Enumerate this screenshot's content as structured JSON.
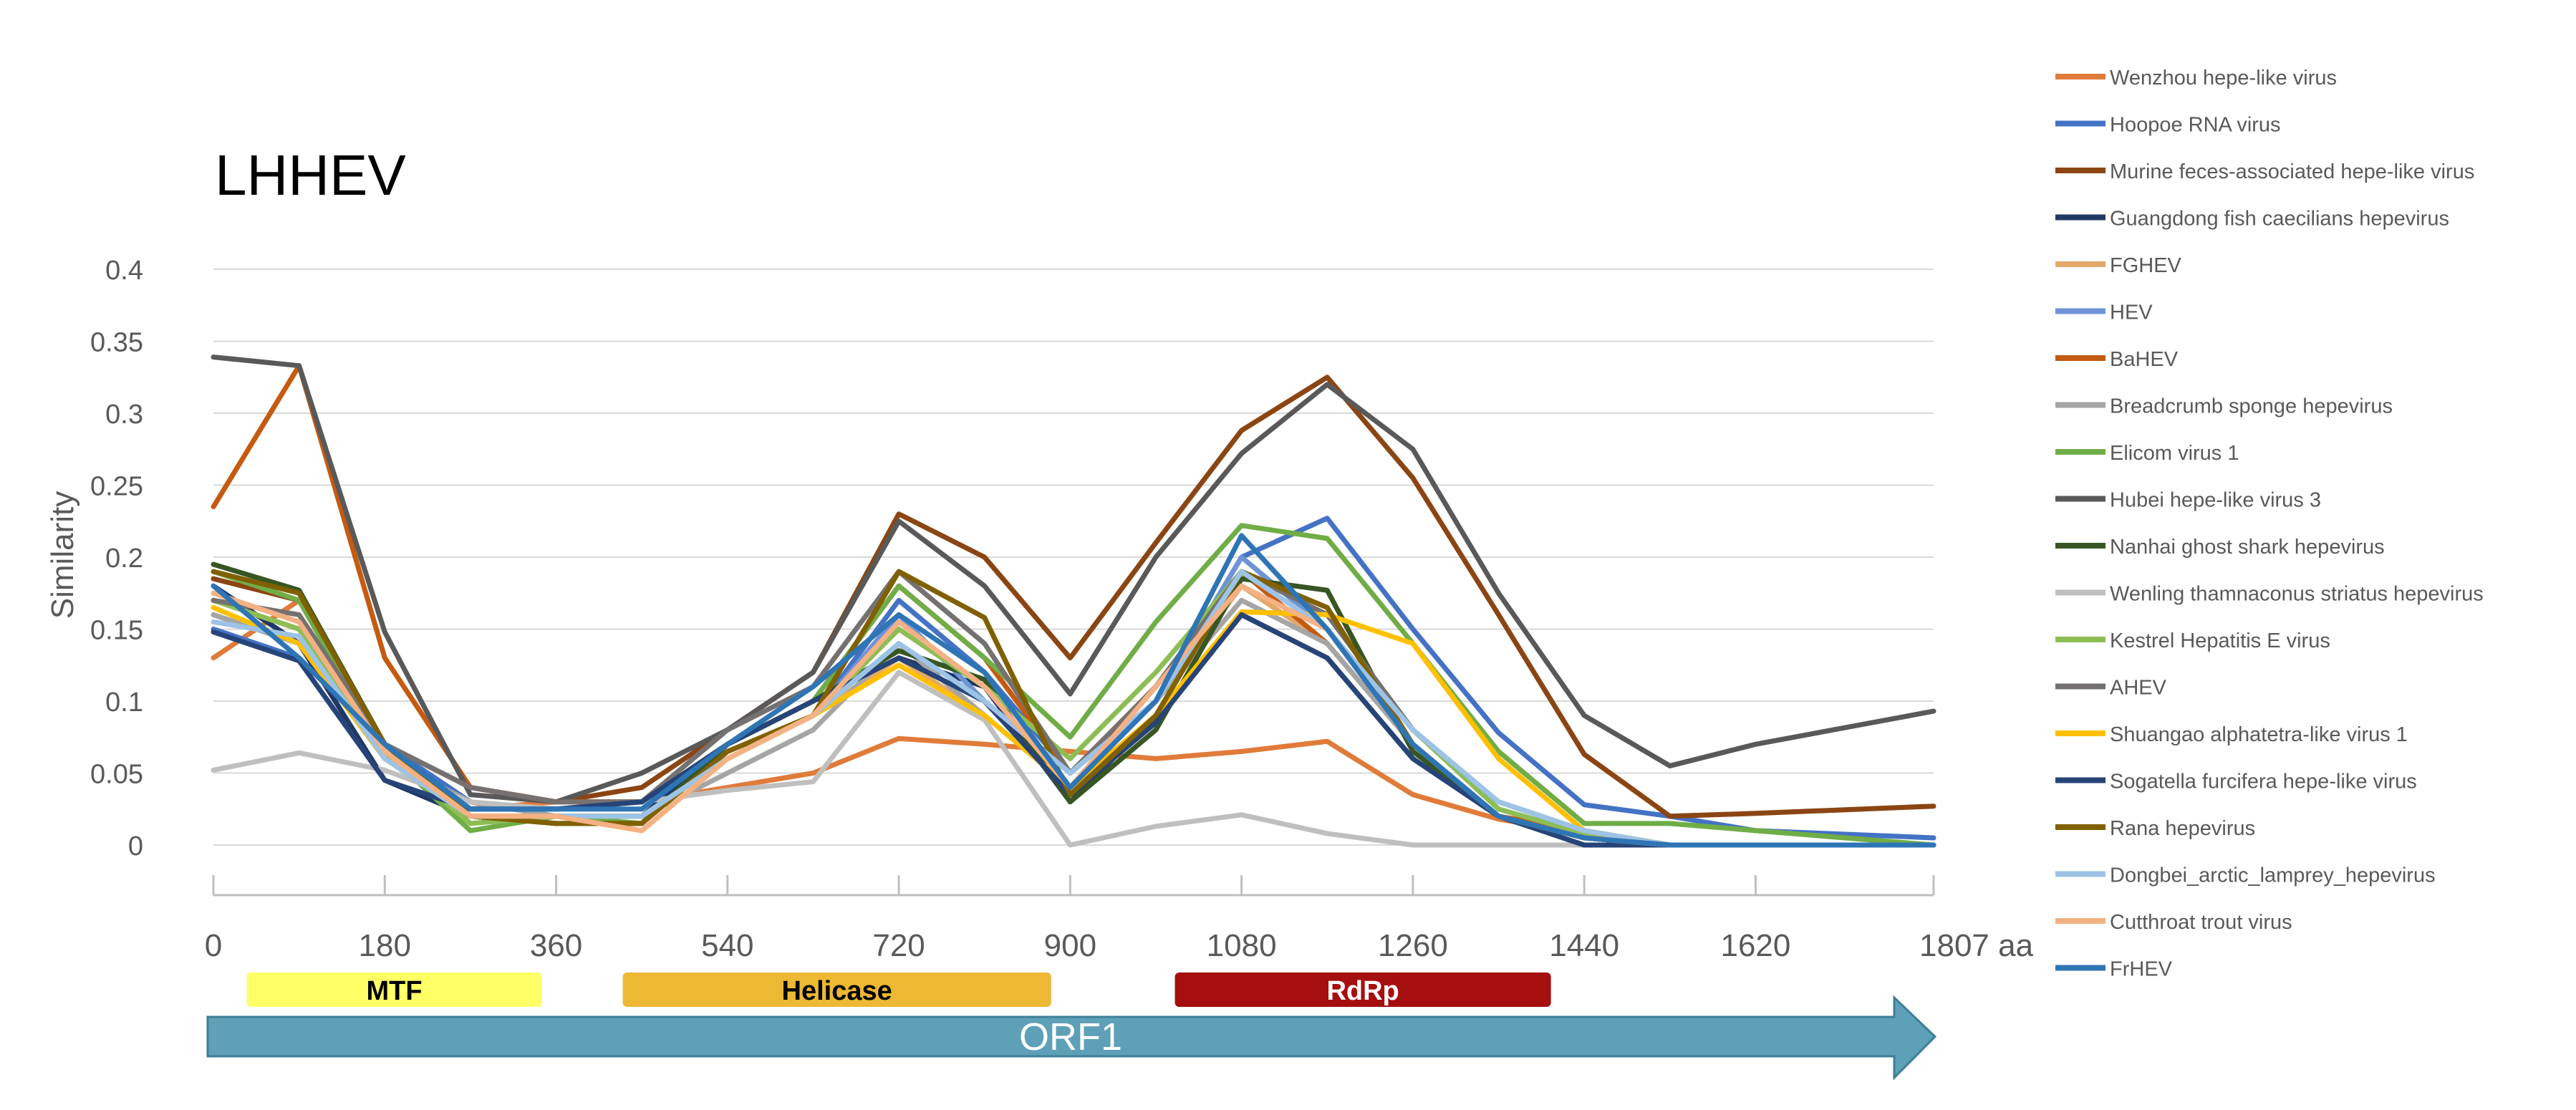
{
  "chart_data": {
    "type": "line",
    "title": "LHHEV",
    "ylabel": "Similarity",
    "xlabel": "",
    "x_unit": "aa",
    "ylim": [
      0,
      0.4
    ],
    "xlim": [
      0,
      1807
    ],
    "y_ticks": [
      0,
      0.05,
      0.1,
      0.15,
      0.2,
      0.25,
      0.3,
      0.35,
      0.4
    ],
    "y_tick_labels": [
      "0",
      "0.05",
      "0.1",
      "0.15",
      "0.2",
      "0.25",
      "0.3",
      "0.35",
      "0.4"
    ],
    "x_ticks": [
      0,
      180,
      360,
      540,
      720,
      900,
      1080,
      1260,
      1440,
      1620,
      1807
    ],
    "x_tick_labels": [
      "0",
      "180",
      "360",
      "540",
      "720",
      "900",
      "1080",
      "1260",
      "1440",
      "1620",
      "1807 aa"
    ],
    "grid": true,
    "legend_position": "right",
    "x": [
      0,
      90,
      180,
      270,
      360,
      450,
      540,
      630,
      720,
      810,
      900,
      990,
      1080,
      1170,
      1260,
      1350,
      1440,
      1530,
      1620,
      1807
    ],
    "series": [
      {
        "name": "Wenzhou hepe-like virus",
        "color": "#E07B39",
        "values": [
          0.13,
          0.17,
          0.07,
          0.025,
          0.03,
          0.03,
          0.04,
          0.05,
          0.074,
          0.07,
          0.065,
          0.06,
          0.065,
          0.072,
          0.035,
          0.018,
          0.008,
          0,
          0,
          0
        ]
      },
      {
        "name": "Hoopoe RNA virus",
        "color": "#4472C4",
        "values": [
          0.15,
          0.13,
          0.07,
          0.03,
          0.02,
          0.02,
          0.06,
          0.09,
          0.17,
          0.12,
          0.05,
          0.1,
          0.2,
          0.227,
          0.15,
          0.078,
          0.028,
          0.02,
          0.01,
          0.005
        ]
      },
      {
        "name": "Murine feces-associated hepe-like virus",
        "color": "#8B4513",
        "values": [
          0.185,
          0.17,
          0.07,
          0.04,
          0.03,
          0.04,
          0.08,
          0.12,
          0.23,
          0.2,
          0.13,
          0.21,
          0.288,
          0.325,
          0.255,
          0.16,
          0.063,
          0.02,
          0.022,
          0.027
        ]
      },
      {
        "name": "Guangdong fish caecilians hepevirus",
        "color": "#1F3864",
        "values": [
          0.18,
          0.14,
          0.045,
          0.02,
          0.02,
          0.02,
          0.07,
          0.1,
          0.13,
          0.11,
          0.03,
          0.09,
          0.16,
          0.13,
          0.06,
          0.02,
          0.005,
          0,
          0,
          0
        ]
      },
      {
        "name": "FGHEV",
        "color": "#E3A869",
        "values": [
          0.17,
          0.15,
          0.06,
          0.03,
          0.02,
          0.02,
          0.06,
          0.09,
          0.13,
          0.09,
          0.04,
          0.1,
          0.18,
          0.14,
          0.07,
          0.02,
          0.01,
          0,
          0,
          0
        ]
      },
      {
        "name": "HEV",
        "color": "#6F93D6",
        "values": [
          0.16,
          0.14,
          0.06,
          0.03,
          0.02,
          0.02,
          0.06,
          0.09,
          0.16,
          0.1,
          0.05,
          0.1,
          0.2,
          0.15,
          0.07,
          0.02,
          0.008,
          0,
          0,
          0
        ]
      },
      {
        "name": "BaHEV",
        "color": "#C55A11",
        "values": [
          0.235,
          0.333,
          0.13,
          0.04,
          0.03,
          0.03,
          0.07,
          0.1,
          0.18,
          0.13,
          0.05,
          0.11,
          0.19,
          0.14,
          0.07,
          0.02,
          0.01,
          0,
          0,
          0
        ]
      },
      {
        "name": "Breadcrumb sponge hepevirus",
        "color": "#A5A5A5",
        "values": [
          0.16,
          0.14,
          0.06,
          0.03,
          0.02,
          0.02,
          0.05,
          0.08,
          0.14,
          0.09,
          0.04,
          0.1,
          0.17,
          0.14,
          0.07,
          0.02,
          0.005,
          0,
          0,
          0
        ]
      },
      {
        "name": "Elicom virus 1",
        "color": "#70AD47",
        "values": [
          0.19,
          0.17,
          0.065,
          0.01,
          0.02,
          0.015,
          0.07,
          0.1,
          0.18,
          0.13,
          0.075,
          0.155,
          0.222,
          0.213,
          0.14,
          0.065,
          0.015,
          0.015,
          0.01,
          0
        ]
      },
      {
        "name": "Hubei hepe-like virus 3",
        "color": "#595959",
        "values": [
          0.339,
          0.333,
          0.148,
          0.035,
          0.03,
          0.05,
          0.08,
          0.12,
          0.225,
          0.18,
          0.105,
          0.2,
          0.272,
          0.32,
          0.275,
          0.175,
          0.09,
          0.055,
          0.07,
          0.093
        ]
      },
      {
        "name": "Nanhai ghost shark hepevirus",
        "color": "#375623",
        "values": [
          0.195,
          0.177,
          0.07,
          0.02,
          0.015,
          0.015,
          0.07,
          0.1,
          0.135,
          0.115,
          0.03,
          0.08,
          0.185,
          0.177,
          0.065,
          0.02,
          0.005,
          0,
          0,
          0
        ]
      },
      {
        "name": "Wenling thamnaconus striatus hepevirus",
        "color": "#BFBFBF",
        "values": [
          0.052,
          0.064,
          0.052,
          0.03,
          0.025,
          0.03,
          0.038,
          0.044,
          0.12,
          0.087,
          0,
          0.013,
          0.021,
          0.008,
          0,
          0,
          0,
          0,
          0,
          0
        ]
      },
      {
        "name": "Kestrel Hepatitis E virus",
        "color": "#8DBE55",
        "values": [
          0.17,
          0.15,
          0.065,
          0.015,
          0.02,
          0.02,
          0.06,
          0.09,
          0.15,
          0.11,
          0.06,
          0.12,
          0.19,
          0.16,
          0.08,
          0.025,
          0.008,
          0,
          0,
          0
        ]
      },
      {
        "name": "AHEV",
        "color": "#767171",
        "values": [
          0.17,
          0.16,
          0.07,
          0.04,
          0.03,
          0.03,
          0.08,
          0.11,
          0.19,
          0.14,
          0.05,
          0.11,
          0.19,
          0.16,
          0.08,
          0.03,
          0.01,
          0,
          0,
          0
        ]
      },
      {
        "name": "Shuangao alphatetra-like virus 1",
        "color": "#FFC000",
        "values": [
          0.165,
          0.14,
          0.06,
          0.02,
          0.02,
          0.01,
          0.06,
          0.09,
          0.125,
          0.09,
          0.04,
          0.09,
          0.162,
          0.16,
          0.14,
          0.06,
          0.01,
          0,
          0,
          0
        ]
      },
      {
        "name": "Sogatella furcifera hepe-like virus",
        "color": "#264478",
        "values": [
          0.148,
          0.128,
          0.045,
          0.025,
          0.025,
          0.03,
          0.07,
          0.1,
          0.13,
          0.1,
          0.035,
          0.085,
          0.16,
          0.13,
          0.06,
          0.02,
          0,
          0,
          0,
          0
        ]
      },
      {
        "name": "Rana hepevirus",
        "color": "#806000",
        "values": [
          0.19,
          0.175,
          0.07,
          0.02,
          0.015,
          0.015,
          0.065,
          0.09,
          0.19,
          0.158,
          0.035,
          0.09,
          0.19,
          0.165,
          0.07,
          0.02,
          0.005,
          0,
          0,
          0
        ]
      },
      {
        "name": "Dongbei_arctic_lamprey_hepevirus",
        "color": "#9DC3E6",
        "values": [
          0.155,
          0.145,
          0.06,
          0.02,
          0.02,
          0.02,
          0.06,
          0.09,
          0.14,
          0.1,
          0.05,
          0.1,
          0.19,
          0.15,
          0.08,
          0.03,
          0.01,
          0,
          0,
          0
        ]
      },
      {
        "name": "Cutthroat trout virus",
        "color": "#F4B183",
        "values": [
          0.175,
          0.155,
          0.065,
          0.02,
          0.02,
          0.01,
          0.06,
          0.09,
          0.155,
          0.11,
          0.04,
          0.11,
          0.18,
          0.15,
          0.07,
          0.02,
          0.005,
          0,
          0,
          0
        ]
      },
      {
        "name": "FrHEV",
        "color": "#2E75B6",
        "values": [
          0.18,
          0.13,
          0.07,
          0.025,
          0.025,
          0.025,
          0.07,
          0.11,
          0.16,
          0.12,
          0.04,
          0.1,
          0.215,
          0.15,
          0.07,
          0.02,
          0.005,
          0,
          0,
          0
        ]
      }
    ],
    "domains": [
      {
        "label": "MTF",
        "start": 35,
        "end": 345,
        "color": "#FFFF66",
        "text_color": "#000000"
      },
      {
        "label": "Helicase",
        "start": 430,
        "end": 880,
        "color": "#EDB833",
        "text_color": "#000000"
      },
      {
        "label": "RdRp",
        "start": 1010,
        "end": 1405,
        "color": "#A50F0F",
        "text_color": "#FFFFFF"
      }
    ],
    "orf_label": "ORF1",
    "orf_color": "#5EA0B7"
  }
}
